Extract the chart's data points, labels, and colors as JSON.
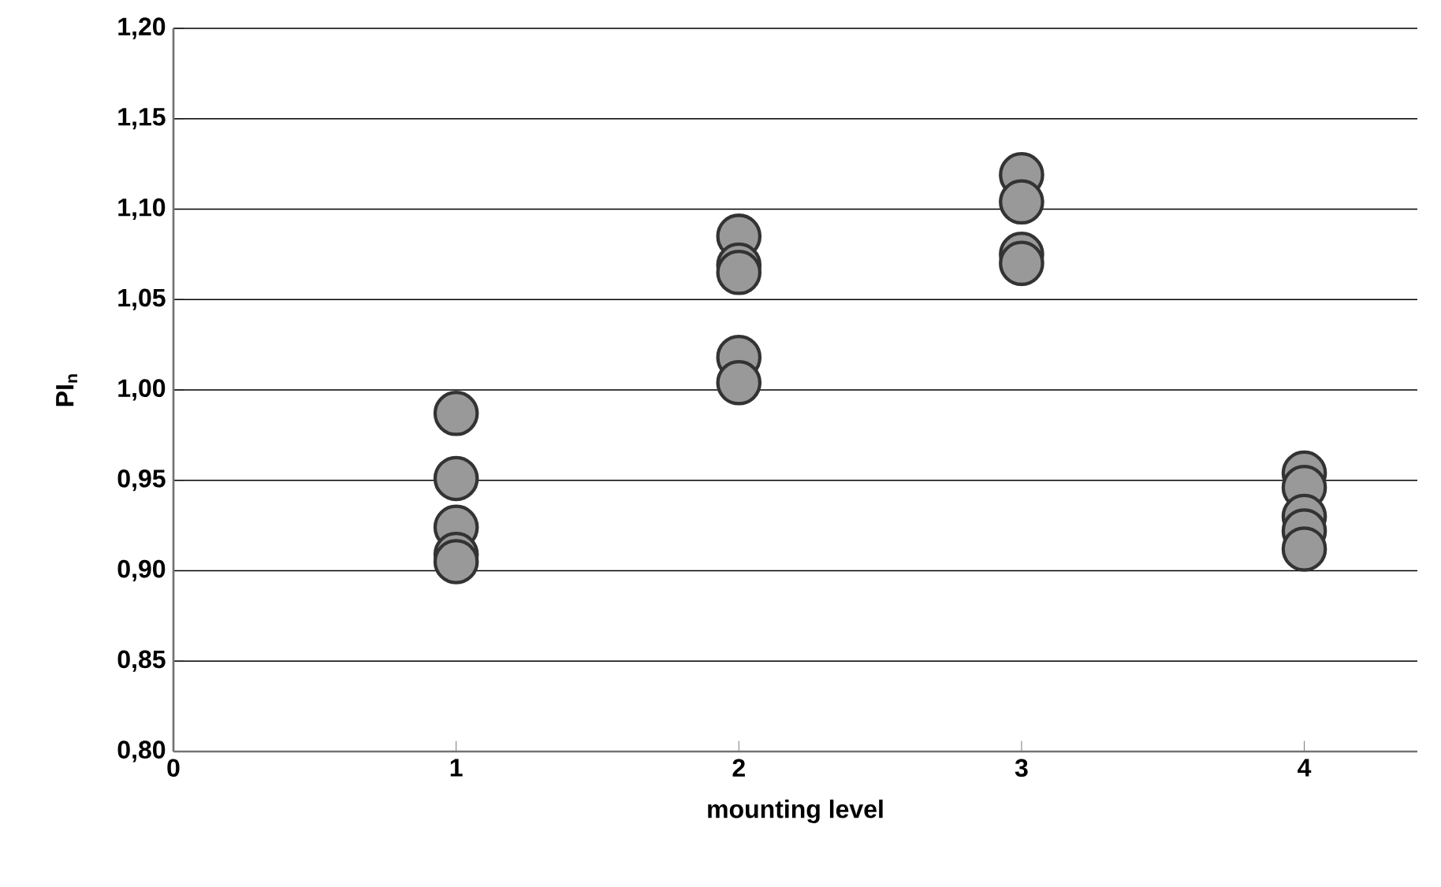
{
  "chart_data": {
    "type": "scatter",
    "xlabel": "mounting level",
    "ylabel": "PI$_{n}$",
    "x": [
      1,
      1,
      1,
      1,
      1,
      2,
      2,
      2,
      2,
      2,
      3,
      3,
      3,
      3,
      4,
      4,
      4,
      4,
      4
    ],
    "series": [
      {
        "color": "#999999",
        "values": [
          0.987,
          0.951,
          0.924,
          0.909,
          0.905,
          1.085,
          1.069,
          1.065,
          1.018,
          1.004,
          1.119,
          1.104,
          1.075,
          1.07,
          0.954,
          0.946,
          0.93,
          0.922,
          0.912
        ]
      }
    ],
    "xlim": [
      0,
      4.4
    ],
    "xticks": [
      0,
      1,
      2,
      3,
      4
    ],
    "ylim": [
      0.8,
      1.2
    ],
    "yticks": [
      {
        "value": 0.8,
        "label": "0,80"
      },
      {
        "value": 0.85,
        "label": "0,85"
      },
      {
        "value": 0.9,
        "label": "0,90"
      },
      {
        "value": 0.95,
        "label": "0,95"
      },
      {
        "value": 1.0,
        "label": "1,00"
      },
      {
        "value": 1.05,
        "label": "1,05"
      },
      {
        "value": 1.1,
        "label": "1,10"
      },
      {
        "value": 1.15,
        "label": "1,15"
      },
      {
        "value": 1.2,
        "label": "1,20"
      }
    ],
    "grid": "y",
    "marker": "circle"
  }
}
